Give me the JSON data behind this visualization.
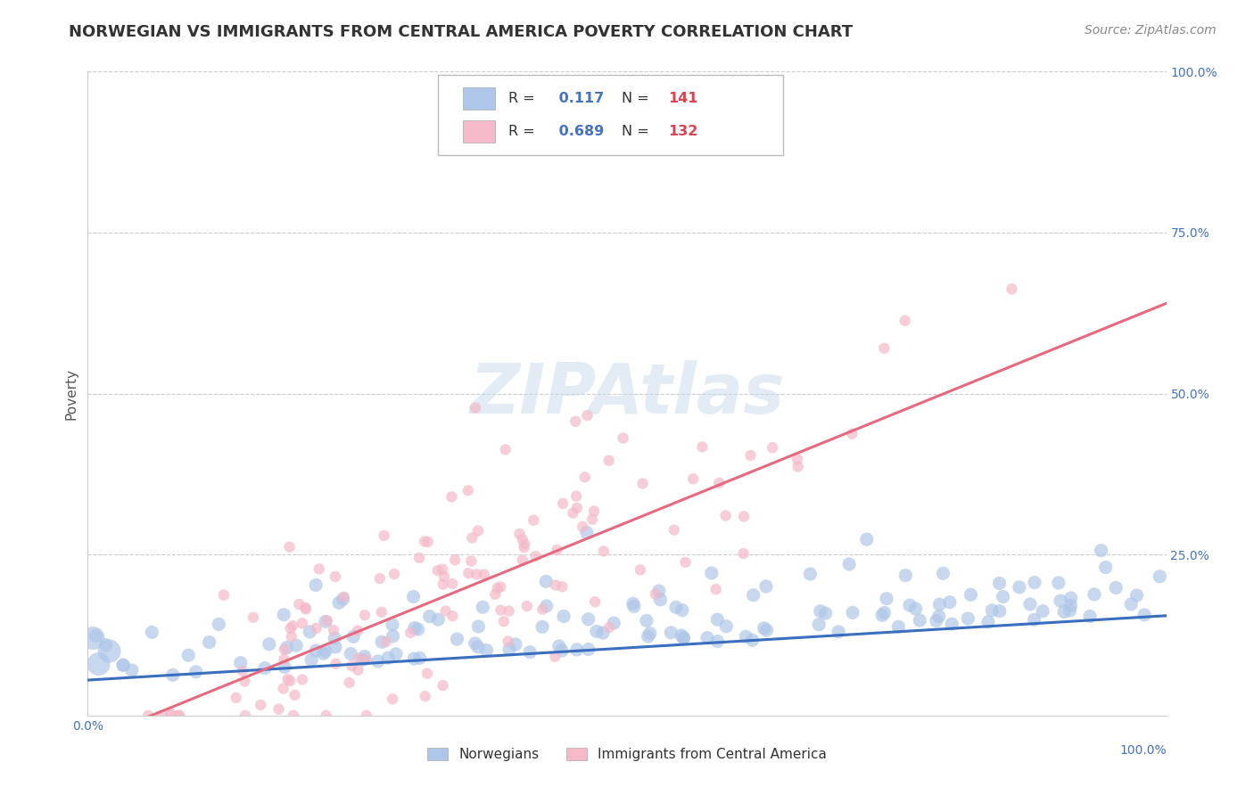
{
  "title": "NORWEGIAN VS IMMIGRANTS FROM CENTRAL AMERICA POVERTY CORRELATION CHART",
  "source": "Source: ZipAtlas.com",
  "ylabel": "Poverty",
  "watermark": "ZIPAtlas",
  "legend_labels": [
    "Norwegians",
    "Immigrants from Central America"
  ],
  "blue_R": 0.117,
  "blue_N": 141,
  "pink_R": 0.689,
  "pink_N": 132,
  "blue_color": "#aec6e8",
  "pink_color": "#f4b8c8",
  "blue_line_color": "#3a6fbf",
  "pink_line_color": "#e8697d",
  "xlim": [
    0.0,
    1.0
  ],
  "ylim": [
    0.0,
    1.0
  ],
  "xticks": [
    0.0,
    1.0
  ],
  "xtick_labels": [
    "0.0%",
    "100.0%"
  ],
  "ytick_labels": [
    "25.0%",
    "50.0%",
    "75.0%",
    "100.0%"
  ],
  "yticks": [
    0.25,
    0.5,
    0.75,
    1.0
  ],
  "background_color": "#ffffff",
  "grid_color": "#cccccc",
  "title_color": "#333333",
  "axis_label_color": "#555555",
  "tick_color": "#4472c4",
  "legend_R_color": "#4472c4",
  "legend_N_color": "#e04050",
  "blue_line_intercept": 0.055,
  "blue_line_slope": 0.1,
  "pink_line_intercept": -0.04,
  "pink_line_slope": 0.68
}
